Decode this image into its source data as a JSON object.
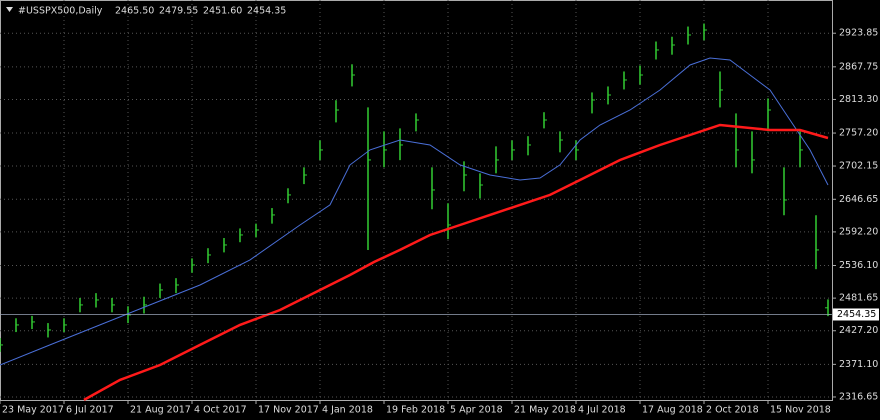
{
  "chart_data": {
    "type": "ohlc",
    "title": "#USSPX500,Daily",
    "last_bar": {
      "x": 414,
      "open": {
        "value": 2465.5,
        "label": "2465.50"
      },
      "high": {
        "value": 2479.55,
        "label": "2479.55"
      },
      "low": {
        "value": 2451.6,
        "label": "2451.60"
      },
      "close": {
        "value": 2454.35,
        "label": "2454.35"
      }
    },
    "bars": {
      "color": "#32cd32",
      "x": [
        0,
        8,
        16,
        24,
        32,
        40,
        48,
        56,
        64,
        72,
        80,
        88,
        96,
        104,
        112,
        120,
        128,
        136,
        144,
        152,
        160,
        168,
        176,
        184,
        192,
        200,
        208,
        216,
        224,
        232,
        240,
        248,
        256,
        264,
        272,
        280,
        288,
        296,
        304,
        312,
        320,
        328,
        336,
        344,
        352,
        360,
        368,
        376,
        384,
        392,
        400,
        408
      ],
      "high": [
        2415,
        2448,
        2452,
        2440,
        2448,
        2482,
        2490,
        2482,
        2468,
        2484,
        2506,
        2515,
        2548,
        2565,
        2582,
        2598,
        2606,
        2632,
        2665,
        2700,
        2745,
        2812,
        2872,
        2800,
        2760,
        2765,
        2790,
        2700,
        2640,
        2710,
        2690,
        2735,
        2745,
        2752,
        2792,
        2760,
        2745,
        2825,
        2835,
        2860,
        2870,
        2910,
        2918,
        2935,
        2940,
        2860,
        2790,
        2760,
        2815,
        2700,
        2760,
        2620
      ],
      "low": [
        2392,
        2425,
        2430,
        2416,
        2425,
        2458,
        2466,
        2458,
        2440,
        2456,
        2482,
        2490,
        2524,
        2540,
        2558,
        2575,
        2583,
        2606,
        2640,
        2672,
        2712,
        2775,
        2835,
        2562,
        2700,
        2712,
        2760,
        2630,
        2580,
        2660,
        2648,
        2690,
        2712,
        2720,
        2765,
        2725,
        2712,
        2790,
        2805,
        2830,
        2838,
        2880,
        2888,
        2905,
        2912,
        2800,
        2700,
        2690,
        2760,
        2620,
        2700,
        2530
      ],
      "close": [
        2403.5,
        2436.9,
        2441.9,
        2428.5,
        2436.9,
        2470.3,
        2478.6,
        2470.3,
        2453.6,
        2470.3,
        2495.3,
        2503.6,
        2537,
        2553.7,
        2570.4,
        2587.1,
        2595.4,
        2620.5,
        2653.9,
        2687.2,
        2729,
        2795.7,
        2854.1,
        2712.3,
        2729,
        2737.3,
        2779,
        2662.2,
        2603.8,
        2687.2,
        2670.5,
        2712.3,
        2729,
        2737.3,
        2779,
        2745.6,
        2729,
        2812.4,
        2820.7,
        2845.8,
        2854.1,
        2895.9,
        2904.2,
        2920.9,
        2929.2,
        2829.1,
        2729,
        2712.3,
        2795.7,
        2645.5,
        2729,
        2562.1
      ]
    },
    "series": [
      {
        "color": "#4a6fd8",
        "x": [
          0,
          25,
          50,
          75,
          100,
          125,
          150,
          165,
          175,
          185,
          200,
          215,
          230,
          245,
          260,
          270,
          280,
          290,
          300,
          315,
          330,
          345,
          355,
          365,
          375,
          385,
          395,
          405,
          414
        ],
        "values": [
          2370.1,
          2403.5,
          2436.9,
          2470.3,
          2503.6,
          2545.4,
          2603.8,
          2637.2,
          2704,
          2729,
          2745.6,
          2737.3,
          2704,
          2687.2,
          2678.9,
          2682.2,
          2704,
          2745.6,
          2770.7,
          2795.7,
          2829.1,
          2870.8,
          2882.5,
          2879.2,
          2854.1,
          2829.1,
          2779,
          2729,
          2670.5
        ]
      },
      {
        "color": "#ff1a1a",
        "x": [
          42,
          60,
          80,
          100,
          120,
          140,
          160,
          175,
          187,
          200,
          215,
          230,
          245,
          260,
          275,
          290,
          310,
          330,
          345,
          360,
          370,
          385,
          400,
          414
        ],
        "values": [
          2311.7,
          2345.1,
          2370.1,
          2403.5,
          2436.9,
          2461.9,
          2495.3,
          2520.3,
          2542,
          2562.1,
          2587.1,
          2603.8,
          2620.5,
          2637.2,
          2653.9,
          2678.9,
          2712.3,
          2737.3,
          2754,
          2770.7,
          2767.3,
          2762.3,
          2762.3,
          2749
        ]
      }
    ],
    "xlim": [
      0,
      416
    ],
    "xticks": [
      {
        "value": 0,
        "label": "23 May 2017"
      },
      {
        "value": 32,
        "label": "6 Jul 2017"
      },
      {
        "value": 64,
        "label": "21 Aug 2017"
      },
      {
        "value": 96,
        "label": "4 Oct 2017"
      },
      {
        "value": 128,
        "label": "17 Nov 2017"
      },
      {
        "value": 160,
        "label": "4 Jan 2018"
      },
      {
        "value": 192,
        "label": "19 Feb 2018"
      },
      {
        "value": 224,
        "label": "5 Apr 2018"
      },
      {
        "value": 256,
        "label": "21 May 2018"
      },
      {
        "value": 288,
        "label": "4 Jul 2018"
      },
      {
        "value": 320,
        "label": "17 Aug 2018"
      },
      {
        "value": 352,
        "label": "2 Oct 2018"
      },
      {
        "value": 384,
        "label": "15 Nov 2018"
      }
    ],
    "ylim": [
      2311.6,
      2979.3
    ],
    "yticks": [
      2923.85,
      2867.75,
      {
        "value": 2813.3,
        "label": "2813.30"
      },
      {
        "value": 2757.2,
        "label": "2757.20"
      },
      2702.15,
      2646.65,
      {
        "value": 2592.2,
        "label": "2592.20"
      },
      {
        "value": 2536.1,
        "label": "2536.10"
      },
      2481.65,
      {
        "value": 2427.2,
        "label": "2427.20"
      },
      {
        "value": 2371.1,
        "label": "2371.10"
      },
      2316.65
    ],
    "grid": true
  }
}
